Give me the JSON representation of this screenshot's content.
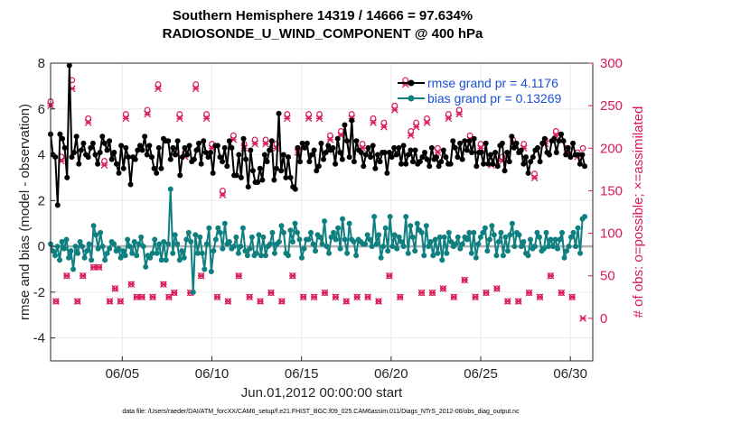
{
  "title_line1": "Southern Hemisphere 14319 / 14666 = 97.634%",
  "title_line2": "RADIOSONDE_U_WIND_COMPONENT @ 400 hPa",
  "footer": "data file: /Users/raeder/DAI/ATM_forcXX/CAM6_setup/f.e21.FHIST_BGC.f09_025.CAM6assim.011/Diags_NTrS_2012-06/obs_diag_output.nc",
  "colors": {
    "rmse": "#000000",
    "bias": "#0f7f80",
    "obs": "#d81b55",
    "zero_line": "#b0b0b0",
    "legend_text": "#1a4fd6"
  },
  "chart_data": {
    "type": "line",
    "title": "Southern Hemisphere 14319 / 14666 = 97.634%",
    "subtitle": "RADIOSONDE_U_WIND_COMPONENT @ 400 hPa",
    "xlabel": "Jun.01,2012 00:00:00 start",
    "ylabel": "rmse and bias (model - observation)",
    "y2label": "# of obs: o=possible; ×=assimilated",
    "x_tick_labels": [
      "06/05",
      "06/10",
      "06/15",
      "06/20",
      "06/25",
      "06/30"
    ],
    "x_tick_days": [
      5,
      10,
      15,
      20,
      25,
      30
    ],
    "xlim": [
      1.0,
      31.25
    ],
    "ylim": [
      -5,
      8
    ],
    "y_ticks": [
      -4,
      -2,
      0,
      2,
      4,
      6,
      8
    ],
    "y2lim": [
      -50,
      300
    ],
    "y2_ticks": [
      0,
      50,
      100,
      150,
      200,
      250,
      300
    ],
    "legend": [
      {
        "name": "rmse grand pr = 4.1176",
        "series": "rmse"
      },
      {
        "name": "bias grand pr = 0.13269",
        "series": "bias"
      }
    ],
    "series": [
      {
        "name": "rmse",
        "axis": "left",
        "values": [
          4.9,
          4.0,
          3.9,
          1.8,
          4.9,
          4.7,
          4.3,
          3.0,
          7.9,
          3.9,
          4.1,
          4.8,
          3.6,
          4.2,
          4.5,
          4.0,
          3.9,
          4.3,
          4.5,
          4.0,
          3.6,
          4.1,
          4.8,
          4.5,
          4.2,
          4.6,
          3.8,
          4.1,
          3.6,
          3.2,
          4.4,
          3.4,
          4.3,
          3.9,
          2.7,
          3.9,
          3.8,
          4.2,
          4.4,
          4.2,
          4.8,
          4.0,
          4.4,
          3.9,
          3.4,
          3.2,
          4.3,
          3.4,
          4.7,
          4.6,
          4.6,
          3.8,
          4.3,
          4.0,
          4.6,
          3.1,
          3.9,
          4.3,
          4.0,
          4.4,
          3.7,
          3.8,
          4.2,
          4.5,
          3.6,
          4.6,
          4.1,
          3.9,
          4.1,
          3.2,
          4.4,
          4.4,
          3.9,
          3.7,
          4.3,
          3.5,
          4.6,
          4.3,
          3.1,
          3.1,
          4.0,
          3.0,
          4.7,
          3.8,
          2.6,
          4.2,
          3.3,
          2.8,
          2.8,
          3.4,
          2.9,
          4.0,
          3.7,
          4.2,
          4.6,
          2.9,
          3.4,
          5.8,
          3.3,
          4.0,
          3.0,
          3.9,
          3.0,
          2.6,
          2.5,
          4.3,
          3.7,
          4.5,
          4.3,
          4.5,
          3.7,
          4.0,
          4.2,
          3.3,
          3.5,
          4.5,
          3.8,
          4.1,
          4.4,
          4.2,
          4.3,
          3.6,
          4.7,
          4.1,
          3.8,
          5.3,
          4.6,
          3.9,
          5.5,
          3.7,
          4.6,
          4.2,
          4.1,
          3.5,
          4.0,
          4.3,
          3.9,
          4.4,
          3.4,
          4.0,
          3.7,
          4.1,
          4.1,
          3.2,
          4.1,
          3.9,
          4.3,
          4.0,
          4.3,
          3.6,
          4.4,
          3.6,
          4.0,
          4.2,
          3.7,
          4.2,
          3.6,
          3.7,
          3.9,
          4.1,
          3.8,
          3.5,
          4.3,
          3.8,
          3.9,
          3.5,
          3.7,
          4.2,
          3.9,
          3.6,
          3.6,
          4.6,
          4.3,
          3.9,
          4.5,
          3.8,
          4.6,
          4.2,
          4.6,
          4.1,
          4.7,
          3.5,
          4.1,
          4.1,
          3.6,
          4.5,
          3.6,
          4.0,
          3.6,
          4.1,
          3.5,
          4.4,
          4.5,
          3.3,
          4.1,
          3.7,
          4.8,
          4.3,
          4.5,
          4.1,
          4.2,
          3.6,
          3.9,
          3.2,
          3.7,
          3.9,
          4.2,
          4.3,
          3.7,
          4.5,
          4.7,
          4.1,
          4.0,
          4.6,
          4.7,
          4.1,
          4.6,
          4.9,
          4.6,
          4.0,
          4.3,
          3.9,
          4.5,
          4.0,
          4.0,
          3.6,
          4.0,
          3.5
        ],
        "note": "one point per 6-h cycle starting Jun 1 00Z; visually sampled"
      },
      {
        "name": "bias",
        "axis": "left",
        "values": [
          0.1,
          -0.2,
          -0.4,
          0.0,
          -0.6,
          0.2,
          -0.1,
          0.3,
          -0.5,
          -0.2,
          -1.0,
          0.0,
          -0.3,
          0.2,
          0.0,
          -0.5,
          -0.2,
          0.1,
          -0.6,
          0.9,
          0.5,
          -0.1,
          0.6,
          0.0,
          -0.6,
          -0.3,
          -0.1,
          0.2,
          0.1,
          -0.2,
          -0.1,
          -0.5,
          -0.2,
          -0.4,
          0.3,
          0.0,
          -0.3,
          0.2,
          -0.4,
          0.1,
          0.4,
          0.0,
          -0.9,
          -0.4,
          -0.5,
          -0.3,
          0.3,
          -0.3,
          0.1,
          -0.6,
          0.2,
          -0.6,
          0.1,
          2.5,
          -0.3,
          0.5,
          0.1,
          -0.6,
          -0.2,
          -0.5,
          0.3,
          0.6,
          0.2,
          -2.0,
          0.5,
          -0.3,
          0.4,
          -0.3,
          -1.0,
          0.1,
          0.8,
          -1.1,
          -0.2,
          0.3,
          0.8,
          0.6,
          -0.1,
          1.0,
          0.1,
          0.2,
          -0.1,
          0.0,
          0.4,
          -0.3,
          0.0,
          0.8,
          -0.2,
          -0.4,
          -0.1,
          0.4,
          -0.4,
          -0.3,
          0.5,
          -0.4,
          0.4,
          -0.4,
          0.0,
          0.1,
          0.6,
          -0.3,
          0.1,
          0.2,
          0.9,
          0.6,
          -0.3,
          -0.4,
          0.7,
          0.2,
          1.0,
          0.6,
          0.3,
          -0.5,
          -0.1,
          0.3,
          0.3,
          0.6,
          0.1,
          -0.2,
          0.5,
          0.4,
          0.1,
          1.1,
          0.0,
          -0.3,
          0.4,
          0.6,
          0.3,
          0.8,
          -0.1,
          1.2,
          0.3,
          -0.3,
          1.0,
          0.3,
          0.2,
          -0.4,
          0.3,
          0.2,
          0.1,
          0.1,
          0.5,
          0.3,
          0.0,
          1.3,
          0.1,
          0.5,
          -0.5,
          0.0,
          0.8,
          -0.2,
          1.3,
          0.0,
          0.5,
          -0.1,
          0.4,
          0.2,
          0.0,
          1.3,
          -0.3,
          0.9,
          0.4,
          -0.2,
          1.0,
          0.7,
          0.6,
          -0.4,
          0.9,
          0.0,
          0.2,
          -0.4,
          0.3,
          -0.3,
          0.4,
          -0.6,
          0.4,
          -0.3,
          0.6,
          0.2,
          0.0,
          0.1,
          0.4,
          -0.1,
          0.1,
          0.4,
          0.3,
          0.6,
          -0.3,
          0.6,
          -0.5,
          0.1,
          0.4,
          0.6,
          0.8,
          -0.2,
          0.3,
          0.9,
          0.5,
          -0.4,
          0.2,
          0.6,
          -0.4,
          0.4,
          -0.2,
          0.5,
          1.0,
          0.0,
          0.6,
          0.5,
          0.0,
          0.2,
          -0.3,
          -0.4,
          0.3,
          -0.1,
          0.0,
          0.6,
          0.4,
          -0.2,
          -0.1,
          0.6,
          0.0,
          0.3,
          0.0,
          0.3,
          -0.1,
          0.3,
          0.6,
          -0.5,
          -0.2,
          0.0,
          0.4,
          0.6,
          0.0,
          0.8,
          -0.3,
          1.2,
          1.3
        ],
        "note": "one point per 6-h cycle starting Jun 1 00Z; visually sampled"
      },
      {
        "name": "obs possible",
        "axis": "right",
        "marker": "o",
        "values": [
          255,
          20,
          190,
          50,
          280,
          20,
          50,
          235,
          60,
          60,
          185,
          20,
          35,
          20,
          240,
          40,
          25,
          25,
          245,
          25,
          275,
          40,
          25,
          30,
          240,
          195,
          30,
          275,
          50,
          240,
          205,
          25,
          150,
          20,
          215,
          50,
          205,
          25,
          210,
          20,
          210,
          30,
          205,
          20,
          240,
          50,
          200,
          25,
          240,
          25,
          240,
          30,
          215,
          25,
          220,
          20,
          240,
          25,
          205,
          25,
          235,
          20,
          230,
          50,
          250,
          25,
          280,
          220,
          230,
          30,
          235,
          30,
          200,
          35,
          240,
          25,
          245,
          45,
          215,
          25,
          205,
          30,
          185,
          35,
          190,
          20,
          210,
          20,
          205,
          30,
          170,
          25,
          210,
          50,
          220,
          30,
          200,
          25,
          195,
          200
        ],
        "note": "sampled per 12-h cycle"
      },
      {
        "name": "obs assimilated",
        "axis": "right",
        "marker": "x",
        "values": [
          250,
          20,
          185,
          50,
          270,
          20,
          50,
          230,
          60,
          60,
          180,
          20,
          35,
          20,
          235,
          40,
          25,
          25,
          240,
          25,
          270,
          40,
          25,
          30,
          235,
          190,
          30,
          270,
          50,
          235,
          200,
          25,
          145,
          20,
          210,
          50,
          200,
          25,
          205,
          20,
          205,
          30,
          200,
          20,
          235,
          50,
          195,
          25,
          235,
          25,
          235,
          30,
          210,
          25,
          215,
          20,
          235,
          25,
          200,
          25,
          230,
          20,
          225,
          50,
          245,
          25,
          275,
          215,
          225,
          30,
          230,
          30,
          195,
          35,
          235,
          25,
          240,
          45,
          210,
          25,
          200,
          30,
          180,
          35,
          185,
          20,
          205,
          20,
          200,
          30,
          165,
          25,
          205,
          50,
          215,
          30,
          195,
          25,
          190,
          0
        ],
        "note": "sampled per 12-h cycle"
      }
    ]
  }
}
